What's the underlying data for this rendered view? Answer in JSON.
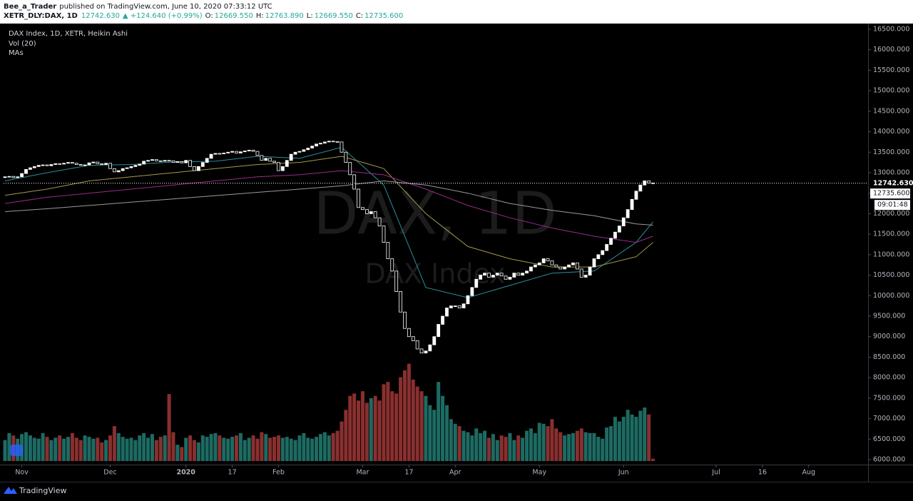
{
  "header": {
    "author": "Bee_a_Trader",
    "published": "published on TradingView.com, June 10, 2020 07:33:12 UTC",
    "symbol": "XETR_DLY:DAX, 1D",
    "last": "12742.630",
    "change": "▲ +124.640 (+0.99%)",
    "open_label": "O:",
    "open": "12669.550",
    "high_label": "H:",
    "high": "12763.890",
    "low_label": "L:",
    "low": "12669.550",
    "close_label": "C:",
    "close": "12735.600"
  },
  "legend": [
    "DAX Index, 1D, XETR, Heikin Ashi",
    "Vol (20)",
    "MAs"
  ],
  "watermark": {
    "title": "DAX, 1D",
    "subtitle": "DAX Index"
  },
  "footer": "TradingView",
  "chart_data": {
    "type": "candlestick",
    "xlim": [
      -0.34,
      205.1
    ],
    "ylim": [
      5878,
      16604
    ],
    "xticks": [
      {
        "value": 4,
        "label": "Nov"
      },
      {
        "value": 25,
        "label": "Dec"
      },
      {
        "value": 43,
        "label": "2020"
      },
      {
        "value": 54,
        "label": "17"
      },
      {
        "value": 65,
        "label": "Feb"
      },
      {
        "value": 85,
        "label": "Mar"
      },
      {
        "value": 96,
        "label": "17"
      },
      {
        "value": 107,
        "label": "Apr"
      },
      {
        "value": 127,
        "label": "May"
      },
      {
        "value": 147,
        "label": "Jun"
      },
      {
        "value": 169,
        "label": "Jul"
      },
      {
        "value": 180,
        "label": "16"
      },
      {
        "value": 191,
        "label": "Aug"
      }
    ],
    "yticks": [
      {
        "value": 6000,
        "label": "6000.000"
      },
      {
        "value": 6500,
        "label": "6500.000"
      },
      {
        "value": 7000,
        "label": "7000.000"
      },
      {
        "value": 7500,
        "label": "7500.000"
      },
      {
        "value": 8000,
        "label": "8000.000"
      },
      {
        "value": 8500,
        "label": "8500.000"
      },
      {
        "value": 9000,
        "label": "9000.000"
      },
      {
        "value": 9500,
        "label": "9500.000"
      },
      {
        "value": 10000,
        "label": "10000.000"
      },
      {
        "value": 10500,
        "label": "10500.000"
      },
      {
        "value": 11000,
        "label": "11000.000"
      },
      {
        "value": 11500,
        "label": "11500.000"
      },
      {
        "value": 12000,
        "label": "12000.000"
      },
      {
        "value": 12500,
        "label": "12500.000"
      },
      {
        "value": 13000,
        "label": "13000.000"
      },
      {
        "value": 13500,
        "label": "13500.000"
      },
      {
        "value": 14000,
        "label": "14000.000"
      },
      {
        "value": 14500,
        "label": "14500.000"
      },
      {
        "value": 15000,
        "label": "15000.000"
      },
      {
        "value": 15500,
        "label": "15500.000"
      },
      {
        "value": 16000,
        "label": "16000.000"
      },
      {
        "value": 16500,
        "label": "16500.000"
      }
    ],
    "up_color": "#ffffff",
    "down_color": "#000000",
    "open": [
      12880,
      12900,
      12910,
      12880,
      12900,
      12980,
      13080,
      13120,
      13150,
      13180,
      13190,
      13170,
      13200,
      13220,
      13210,
      13230,
      13250,
      13230,
      13200,
      13180,
      13190,
      13240,
      13260,
      13220,
      13200,
      13230,
      13100,
      13020,
      13050,
      13100,
      13120,
      13150,
      13180,
      13210,
      13280,
      13300,
      13320,
      13290,
      13280,
      13300,
      13290,
      13250,
      13270,
      13240,
      13300,
      13150,
      13050,
      13150,
      13250,
      13350,
      13450,
      13470,
      13460,
      13480,
      13500,
      13520,
      13480,
      13510,
      13530,
      13550,
      13520,
      13420,
      13300,
      13350,
      13280,
      13250,
      13050,
      13150,
      13300,
      13450,
      13500,
      13520,
      13560,
      13600,
      13650,
      13700,
      13720,
      13750,
      13770,
      13760,
      13750,
      13500,
      13250,
      12950,
      12600,
      12150,
      12100,
      12000,
      12050,
      11900,
      11700,
      11300,
      10900,
      10600,
      10100,
      9600,
      9200,
      9000,
      8900,
      8700,
      8600,
      8650,
      8800,
      9000,
      9300,
      9500,
      9700,
      9750,
      9750,
      9700,
      9800,
      10000,
      10200,
      10400,
      10500,
      10550,
      10450,
      10500,
      10550,
      10480,
      10400,
      10450,
      10550,
      10500,
      10550,
      10600,
      10700,
      10750,
      10800,
      10900,
      10850,
      10750,
      10700,
      10650,
      10700,
      10750,
      10800,
      10650,
      10450,
      10500,
      10700,
      10900,
      11000,
      11100,
      11250,
      11400,
      11550,
      11700,
      11900,
      12100,
      12350,
      12550,
      12700,
      12800,
      12750
    ],
    "close": [
      12900,
      12910,
      12880,
      12900,
      12980,
      13080,
      13120,
      13150,
      13180,
      13190,
      13170,
      13200,
      13220,
      13210,
      13230,
      13250,
      13230,
      13200,
      13180,
      13190,
      13240,
      13260,
      13220,
      13200,
      13230,
      13100,
      13020,
      13050,
      13100,
      13120,
      13150,
      13180,
      13210,
      13280,
      13300,
      13320,
      13290,
      13280,
      13300,
      13290,
      13250,
      13270,
      13240,
      13300,
      13150,
      13050,
      13150,
      13250,
      13350,
      13450,
      13470,
      13460,
      13480,
      13500,
      13520,
      13480,
      13510,
      13530,
      13550,
      13520,
      13420,
      13300,
      13350,
      13280,
      13250,
      13050,
      13150,
      13300,
      13450,
      13500,
      13520,
      13560,
      13600,
      13650,
      13700,
      13720,
      13750,
      13770,
      13760,
      13750,
      13500,
      13250,
      12950,
      12600,
      12150,
      12100,
      12000,
      12050,
      11900,
      11700,
      11300,
      10900,
      10600,
      10100,
      9600,
      9200,
      9000,
      8900,
      8700,
      8600,
      8650,
      8800,
      9000,
      9300,
      9500,
      9700,
      9750,
      9750,
      9700,
      9800,
      10000,
      10200,
      10400,
      10500,
      10550,
      10450,
      10500,
      10550,
      10480,
      10400,
      10450,
      10550,
      10500,
      10550,
      10600,
      10700,
      10750,
      10800,
      10900,
      10850,
      10750,
      10700,
      10650,
      10700,
      10750,
      10800,
      10650,
      10450,
      10500,
      10700,
      10900,
      11000,
      11100,
      11250,
      11400,
      11550,
      11700,
      11900,
      12100,
      12350,
      12550,
      12700,
      12800,
      12750,
      12740
    ],
    "volume_ylim": [
      0,
      230
    ],
    "volume_up_color": "#1d6b63",
    "volume_down_color": "#8a2f2f",
    "volume": [
      45,
      60,
      55,
      48,
      58,
      62,
      55,
      50,
      48,
      60,
      52,
      45,
      50,
      55,
      48,
      52,
      60,
      50,
      45,
      55,
      52,
      48,
      50,
      40,
      45,
      55,
      75,
      60,
      52,
      48,
      50,
      45,
      55,
      60,
      50,
      58,
      45,
      52,
      55,
      144,
      62,
      35,
      30,
      50,
      55,
      45,
      40,
      55,
      52,
      58,
      60,
      55,
      50,
      48,
      52,
      55,
      60,
      45,
      50,
      55,
      48,
      62,
      58,
      50,
      52,
      55,
      50,
      52,
      48,
      45,
      55,
      60,
      50,
      48,
      52,
      58,
      62,
      55,
      60,
      65,
      85,
      110,
      140,
      145,
      130,
      150,
      125,
      135,
      140,
      130,
      165,
      170,
      150,
      145,
      180,
      195,
      209,
      175,
      160,
      150,
      140,
      120,
      110,
      170,
      140,
      120,
      90,
      80,
      75,
      65,
      62,
      55,
      70,
      60,
      65,
      50,
      58,
      45,
      55,
      52,
      60,
      45,
      55,
      50,
      65,
      70,
      60,
      82,
      80,
      75,
      90,
      70,
      62,
      55,
      58,
      60,
      65,
      70,
      62,
      60,
      60,
      52,
      48,
      72,
      75,
      95,
      85,
      95,
      110,
      100,
      95,
      108,
      115,
      100,
      5
    ],
    "ma": [
      {
        "color": "#2a8f9c",
        "x": [
          0,
          10,
          20,
          30,
          40,
          50,
          60,
          70,
          80,
          90,
          100,
          110,
          120,
          130,
          140,
          150,
          154
        ],
        "values": [
          12800,
          13000,
          13180,
          13200,
          13260,
          13280,
          13400,
          13350,
          13620,
          12700,
          10200,
          9950,
          10250,
          10550,
          10600,
          11300,
          11800
        ]
      },
      {
        "color": "#a59a48",
        "x": [
          0,
          10,
          20,
          30,
          40,
          50,
          60,
          70,
          80,
          90,
          100,
          110,
          120,
          130,
          140,
          150,
          154
        ],
        "values": [
          12450,
          12600,
          12800,
          12900,
          13000,
          13100,
          13200,
          13250,
          13400,
          13100,
          12000,
          11200,
          10900,
          10700,
          10700,
          10950,
          11300
        ]
      },
      {
        "color": "#9c2a8c",
        "x": [
          0,
          10,
          20,
          30,
          40,
          50,
          60,
          70,
          80,
          90,
          100,
          110,
          120,
          130,
          140,
          150,
          154
        ],
        "values": [
          12250,
          12400,
          12500,
          12600,
          12700,
          12800,
          12900,
          12950,
          13050,
          12950,
          12600,
          12200,
          11900,
          11650,
          11450,
          11300,
          11450
        ]
      },
      {
        "color": "#9a9a9a",
        "x": [
          0,
          10,
          20,
          30,
          40,
          50,
          60,
          70,
          80,
          90,
          100,
          110,
          120,
          130,
          140,
          150,
          154
        ],
        "values": [
          12050,
          12120,
          12200,
          12280,
          12360,
          12440,
          12520,
          12600,
          12680,
          12800,
          12700,
          12500,
          12250,
          12080,
          11950,
          11750,
          11720
        ]
      }
    ],
    "last_price": {
      "value": 12742.63,
      "label": "12742.630"
    },
    "close_price": {
      "value": 12735.6,
      "label": "12735.600"
    },
    "countdown": "09:01:48"
  }
}
